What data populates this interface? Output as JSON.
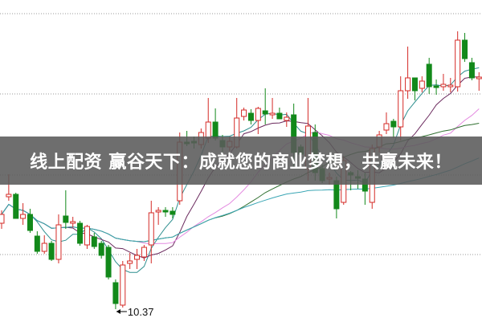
{
  "chart_data": {
    "type": "candlestick",
    "title": "",
    "grid": true,
    "up_color": "#d42a26",
    "down_color": "#12891a",
    "ohlc_fields": [
      "open",
      "high",
      "low",
      "close"
    ],
    "candles": [
      [
        12.51,
        12.83,
        12.37,
        12.73
      ],
      [
        13.17,
        13.73,
        13.07,
        13.23
      ],
      [
        13.23,
        13.27,
        12.63,
        12.63
      ],
      [
        12.63,
        13.01,
        12.47,
        12.73
      ],
      [
        12.73,
        12.87,
        12.27,
        12.33
      ],
      [
        12.19,
        12.31,
        11.75,
        11.81
      ],
      [
        11.81,
        12.21,
        11.75,
        12.01
      ],
      [
        12.01,
        12.07,
        11.57,
        11.61
      ],
      [
        11.61,
        12.73,
        11.51,
        12.47
      ],
      [
        12.69,
        13.33,
        12.37,
        12.53
      ],
      [
        12.51,
        12.67,
        12.41,
        12.55
      ],
      [
        12.51,
        12.57,
        11.95,
        12.01
      ],
      [
        11.97,
        12.47,
        11.87,
        12.43
      ],
      [
        12.17,
        12.27,
        11.87,
        11.93
      ],
      [
        12.01,
        12.07,
        11.63,
        11.71
      ],
      [
        11.91,
        11.97,
        11.11,
        11.17
      ],
      [
        11.03,
        11.11,
        10.37,
        10.51
      ],
      [
        10.47,
        11.57,
        10.41,
        11.47
      ],
      [
        11.51,
        11.77,
        11.37,
        11.57
      ],
      [
        11.61,
        11.87,
        11.37,
        11.71
      ],
      [
        11.67,
        11.97,
        11.57,
        11.91
      ],
      [
        11.97,
        13.07,
        11.51,
        12.77
      ],
      [
        12.79,
        12.91,
        12.47,
        12.83
      ],
      [
        12.83,
        12.91,
        12.67,
        12.79
      ],
      [
        12.81,
        12.91,
        12.63,
        12.73
      ],
      [
        13.07,
        14.77,
        12.97,
        14.53
      ],
      [
        14.53,
        14.81,
        14.43,
        14.49
      ],
      [
        14.55,
        14.67,
        14.37,
        14.51
      ],
      [
        14.47,
        14.87,
        14.37,
        14.77
      ],
      [
        14.63,
        15.63,
        14.51,
        15.03
      ],
      [
        15.03,
        15.37,
        14.57,
        14.63
      ],
      [
        14.57,
        14.71,
        14.27,
        14.41
      ],
      [
        14.41,
        14.67,
        14.31,
        14.55
      ],
      [
        14.41,
        15.63,
        14.37,
        15.13
      ],
      [
        15.17,
        15.39,
        15.07,
        15.33
      ],
      [
        15.25,
        15.35,
        14.97,
        15.07
      ],
      [
        15.07,
        15.41,
        14.73,
        15.37
      ],
      [
        15.31,
        15.87,
        14.97,
        15.23
      ],
      [
        15.21,
        15.63,
        15.11,
        15.25
      ],
      [
        15.25,
        15.39,
        15.11,
        15.11
      ],
      [
        15.07,
        15.27,
        14.91,
        15.15
      ],
      [
        15.21,
        15.49,
        13.91,
        14.27
      ],
      [
        14.41,
        14.47,
        13.87,
        14.23
      ],
      [
        13.87,
        15.63,
        13.57,
        14.93
      ],
      [
        14.77,
        14.97,
        13.57,
        13.77
      ],
      [
        13.87,
        13.97,
        13.51,
        13.57
      ],
      [
        13.61,
        13.77,
        13.47,
        13.65
      ],
      [
        13.57,
        13.67,
        12.63,
        12.87
      ],
      [
        13.03,
        14.17,
        12.97,
        14.07
      ],
      [
        13.77,
        13.81,
        13.33,
        13.71
      ],
      [
        13.67,
        13.83,
        13.37,
        13.63
      ],
      [
        13.61,
        13.77,
        12.97,
        13.31
      ],
      [
        13.03,
        14.47,
        12.87,
        14.37
      ],
      [
        14.41,
        14.81,
        14.27,
        14.71
      ],
      [
        14.83,
        15.27,
        14.73,
        14.99
      ],
      [
        15.05,
        15.11,
        14.63,
        14.91
      ],
      [
        14.91,
        16.17,
        14.57,
        15.81
      ],
      [
        15.81,
        16.91,
        15.61,
        16.13
      ],
      [
        16.13,
        16.13,
        15.57,
        15.81
      ],
      [
        15.87,
        16.17,
        15.77,
        16.05
      ],
      [
        16.47,
        16.63,
        15.73,
        15.91
      ],
      [
        15.93,
        16.09,
        15.71,
        15.89
      ],
      [
        15.91,
        16.23,
        15.81,
        15.97
      ],
      [
        15.91,
        16.13,
        15.77,
        15.95
      ],
      [
        15.91,
        17.29,
        15.79,
        17.07
      ],
      [
        17.07,
        17.25,
        16.53,
        16.61
      ],
      [
        16.51,
        16.63,
        16.07,
        16.13
      ],
      [
        16.11,
        16.27,
        15.81,
        16.15
      ]
    ],
    "moving_averages": [
      {
        "period": 5,
        "color": "#2f8f8f"
      },
      {
        "period": 10,
        "color": "#6b2a5e"
      },
      {
        "period": 20,
        "color": "#e48ae0"
      },
      {
        "period": 30,
        "color": "#2f6f2f"
      },
      {
        "period": 60,
        "color": "#3aa6b4"
      }
    ],
    "annotations": [
      {
        "text": "10.37",
        "candle": 17,
        "marks": "low"
      }
    ]
  },
  "banner": {
    "text": "线上配资 赢谷天下：成就您的商业梦想，共赢未来！"
  }
}
